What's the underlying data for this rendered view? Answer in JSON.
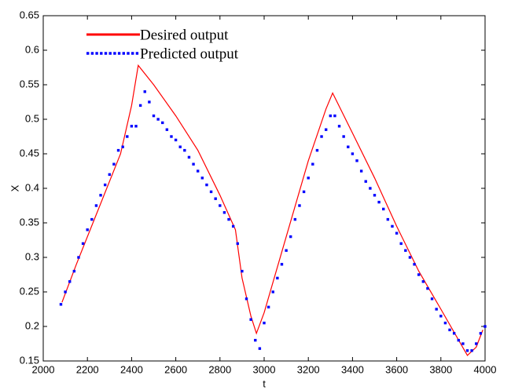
{
  "chart_data": {
    "type": "line",
    "xlabel": "t",
    "ylabel": "X",
    "xlim": [
      2000,
      4000
    ],
    "xticks": [
      2000,
      2200,
      2400,
      2600,
      2800,
      3000,
      3200,
      3400,
      3600,
      3800,
      4000
    ],
    "ylim": [
      0.15,
      0.65
    ],
    "yticks": [
      0.15,
      0.2,
      0.25,
      0.3,
      0.35,
      0.4,
      0.45,
      0.5,
      0.55,
      0.6,
      0.65
    ],
    "legend": "upper left",
    "series": [
      {
        "name": "Desired output",
        "color": "#ff0000",
        "style": "solid",
        "x": [
          2085,
          2150,
          2250,
          2350,
          2400,
          2430,
          2500,
          2600,
          2700,
          2800,
          2870,
          2900,
          2940,
          2965,
          3000,
          3100,
          3200,
          3280,
          3310,
          3400,
          3500,
          3600,
          3700,
          3800,
          3920,
          3960,
          3990
        ],
        "values": [
          0.235,
          0.29,
          0.37,
          0.45,
          0.52,
          0.578,
          0.55,
          0.505,
          0.455,
          0.39,
          0.34,
          0.27,
          0.215,
          0.19,
          0.22,
          0.33,
          0.44,
          0.515,
          0.538,
          0.48,
          0.415,
          0.345,
          0.28,
          0.225,
          0.158,
          0.17,
          0.195
        ]
      },
      {
        "name": "Predicted output",
        "color": "#0000ff",
        "style": "dotted",
        "x": [
          2080,
          2100,
          2120,
          2140,
          2160,
          2180,
          2200,
          2220,
          2240,
          2260,
          2280,
          2300,
          2320,
          2340,
          2360,
          2380,
          2400,
          2420,
          2440,
          2460,
          2480,
          2500,
          2520,
          2540,
          2560,
          2580,
          2600,
          2620,
          2640,
          2660,
          2680,
          2700,
          2720,
          2740,
          2760,
          2780,
          2800,
          2820,
          2840,
          2860,
          2880,
          2900,
          2920,
          2940,
          2960,
          2980,
          3000,
          3020,
          3040,
          3060,
          3080,
          3100,
          3120,
          3140,
          3160,
          3180,
          3200,
          3220,
          3240,
          3260,
          3280,
          3300,
          3320,
          3340,
          3360,
          3380,
          3400,
          3420,
          3440,
          3460,
          3480,
          3500,
          3520,
          3540,
          3560,
          3580,
          3600,
          3620,
          3640,
          3660,
          3680,
          3700,
          3720,
          3740,
          3760,
          3780,
          3800,
          3820,
          3840,
          3860,
          3880,
          3900,
          3920,
          3940,
          3960,
          3980,
          4000
        ],
        "values": [
          0.232,
          0.25,
          0.265,
          0.28,
          0.3,
          0.32,
          0.34,
          0.355,
          0.375,
          0.39,
          0.405,
          0.42,
          0.435,
          0.455,
          0.46,
          0.475,
          0.49,
          0.49,
          0.52,
          0.54,
          0.525,
          0.505,
          0.5,
          0.495,
          0.485,
          0.475,
          0.47,
          0.46,
          0.455,
          0.445,
          0.435,
          0.425,
          0.415,
          0.405,
          0.395,
          0.385,
          0.375,
          0.365,
          0.355,
          0.345,
          0.32,
          0.28,
          0.24,
          0.21,
          0.18,
          0.168,
          0.205,
          0.228,
          0.25,
          0.27,
          0.29,
          0.31,
          0.33,
          0.355,
          0.375,
          0.395,
          0.415,
          0.435,
          0.455,
          0.475,
          0.485,
          0.505,
          0.505,
          0.49,
          0.475,
          0.46,
          0.45,
          0.44,
          0.425,
          0.41,
          0.4,
          0.39,
          0.38,
          0.37,
          0.355,
          0.345,
          0.335,
          0.32,
          0.31,
          0.3,
          0.29,
          0.275,
          0.265,
          0.255,
          0.24,
          0.225,
          0.215,
          0.205,
          0.195,
          0.19,
          0.18,
          0.175,
          0.165,
          0.165,
          0.175,
          0.19,
          0.2
        ]
      }
    ]
  }
}
